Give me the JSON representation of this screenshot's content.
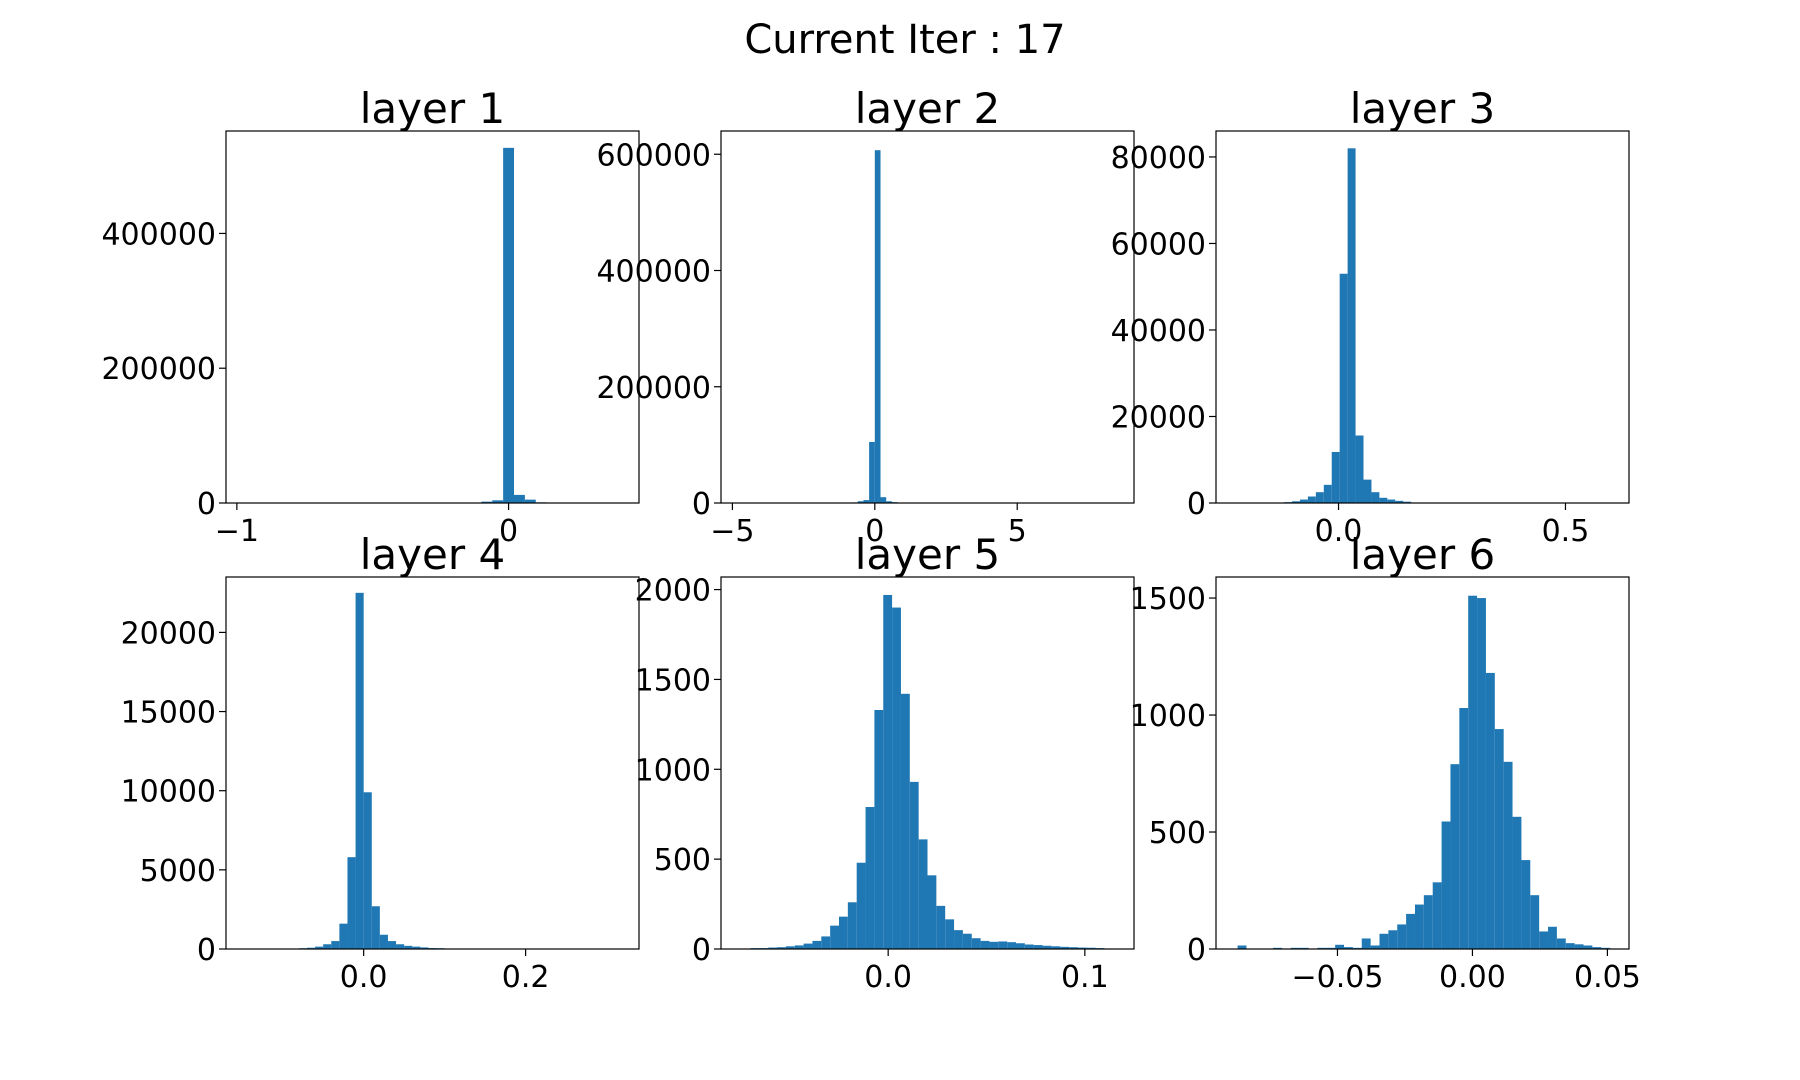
{
  "figure": {
    "suptitle": "Current Iter : 17",
    "bar_color": "#1f77b4"
  },
  "chart_data": [
    {
      "type": "bar",
      "title": "layer 1",
      "xlabel": "",
      "ylabel": "",
      "grid": false,
      "xlim": [
        -1.04,
        0.48
      ],
      "ylim": [
        0,
        552000
      ],
      "xticks": [
        -1,
        0
      ],
      "xtick_labels": [
        "−1",
        "0"
      ],
      "yticks": [
        0,
        200000,
        400000
      ],
      "ytick_labels": [
        "0",
        "200000",
        "400000"
      ],
      "bin_range": [
        -0.1,
        0.14
      ],
      "values": [
        2000,
        4000,
        527000,
        12000,
        5000,
        1000
      ]
    },
    {
      "type": "bar",
      "title": "layer 2",
      "xlabel": "",
      "ylabel": "",
      "grid": false,
      "xlim": [
        -5.4,
        9.1
      ],
      "ylim": [
        0,
        640000
      ],
      "xticks": [
        -5,
        0,
        5
      ],
      "xtick_labels": [
        "−5",
        "0",
        "5"
      ],
      "yticks": [
        0,
        200000,
        400000,
        600000
      ],
      "ytick_labels": [
        "0",
        "200000",
        "400000",
        "600000"
      ],
      "bin_range": [
        -1.0,
        1.0
      ],
      "values": [
        500,
        1000,
        3000,
        5000,
        105000,
        607000,
        10000,
        3000,
        1500,
        500
      ]
    },
    {
      "type": "bar",
      "title": "layer 3",
      "xlabel": "",
      "ylabel": "",
      "grid": false,
      "xlim": [
        -0.27,
        0.64
      ],
      "ylim": [
        0,
        86000
      ],
      "xticks": [
        0.0,
        0.5
      ],
      "xtick_labels": [
        "0.0",
        "0.5"
      ],
      "yticks": [
        0,
        20000,
        40000,
        60000,
        80000
      ],
      "ytick_labels": [
        "0",
        "20000",
        "40000",
        "60000",
        "80000"
      ],
      "bin_range": [
        -0.12,
        0.16
      ],
      "values": [
        200,
        400,
        800,
        1500,
        2500,
        4200,
        11800,
        53000,
        82000,
        15600,
        5400,
        2500,
        1200,
        800,
        500,
        300
      ]
    },
    {
      "type": "bar",
      "title": "layer 4",
      "xlabel": "",
      "ylabel": "",
      "grid": false,
      "xlim": [
        -0.17,
        0.34
      ],
      "ylim": [
        0,
        23500
      ],
      "xticks": [
        0.0,
        0.2
      ],
      "xtick_labels": [
        "0.0",
        "0.2"
      ],
      "yticks": [
        0,
        5000,
        10000,
        15000,
        20000
      ],
      "ytick_labels": [
        "0",
        "5000",
        "10000",
        "15000",
        "20000"
      ],
      "bin_range": [
        -0.08,
        0.1
      ],
      "values": [
        50,
        80,
        150,
        300,
        500,
        1600,
        5800,
        22500,
        9900,
        2700,
        900,
        500,
        300,
        200,
        150,
        100,
        60,
        50
      ]
    },
    {
      "type": "bar",
      "title": "layer 5",
      "xlabel": "",
      "ylabel": "",
      "grid": false,
      "xlim": [
        -0.085,
        0.125
      ],
      "ylim": [
        0,
        2070
      ],
      "xticks": [
        0.0,
        0.1
      ],
      "xtick_labels": [
        "0.0",
        "0.1"
      ],
      "yticks": [
        0,
        500,
        1000,
        1500,
        2000
      ],
      "ytick_labels": [
        "0",
        "500",
        "1000",
        "1500",
        "2000"
      ],
      "bin_range": [
        -0.07,
        0.11
      ],
      "values": [
        5,
        5,
        8,
        10,
        15,
        20,
        30,
        45,
        70,
        130,
        180,
        260,
        480,
        790,
        1330,
        1970,
        1900,
        1420,
        930,
        610,
        410,
        240,
        165,
        105,
        85,
        60,
        45,
        40,
        42,
        38,
        32,
        25,
        22,
        18,
        15,
        12,
        10,
        8,
        7,
        5
      ]
    },
    {
      "type": "bar",
      "title": "layer 6",
      "xlabel": "",
      "ylabel": "",
      "grid": false,
      "xlim": [
        -0.095,
        0.058
      ],
      "ylim": [
        0,
        1590
      ],
      "xticks": [
        -0.05,
        0.0,
        0.05
      ],
      "xtick_labels": [
        "−0.05",
        "0.00",
        "0.05"
      ],
      "yticks": [
        0,
        500,
        1000,
        1500
      ],
      "ytick_labels": [
        "0",
        "500",
        "1000",
        "1500"
      ],
      "bin_range": [
        -0.087,
        0.051
      ],
      "values": [
        15,
        0,
        0,
        0,
        5,
        0,
        5,
        5,
        0,
        5,
        5,
        18,
        8,
        5,
        45,
        15,
        65,
        80,
        105,
        150,
        190,
        230,
        285,
        545,
        790,
        1030,
        1510,
        1500,
        1180,
        940,
        800,
        565,
        380,
        230,
        75,
        95,
        45,
        25,
        20,
        15,
        8,
        5
      ]
    }
  ]
}
